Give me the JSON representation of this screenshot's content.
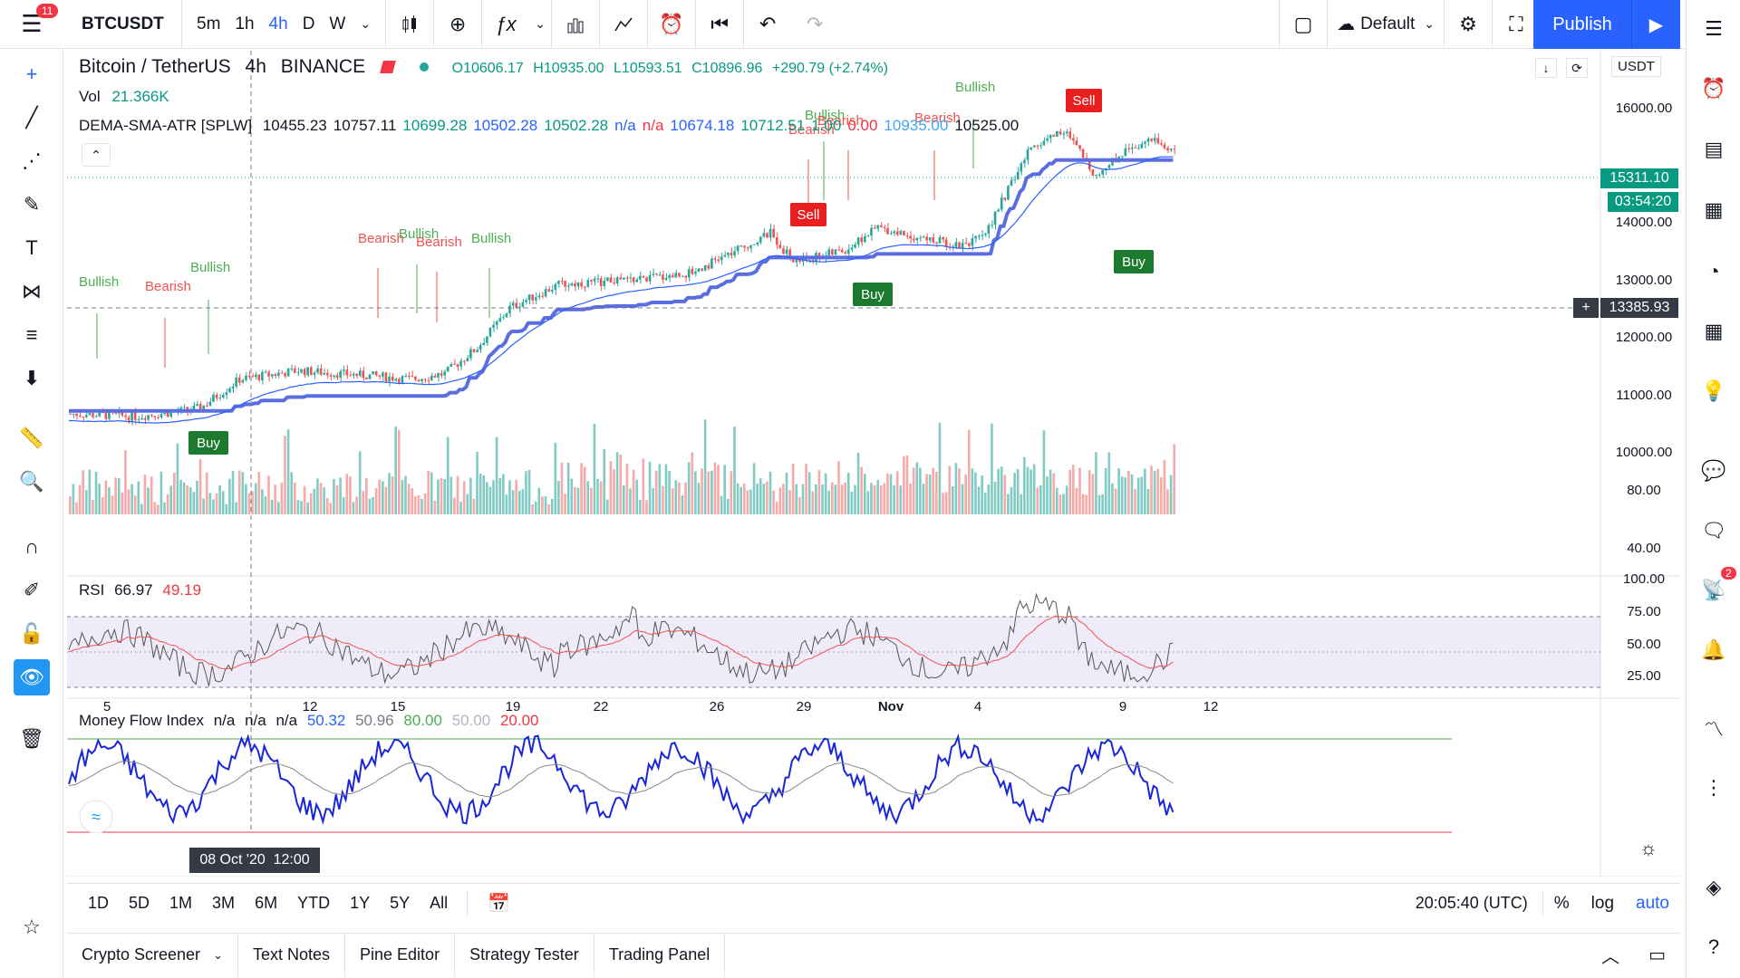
{
  "topbar": {
    "notifications": "11",
    "symbol": "BTCUSDT",
    "intervals": [
      "5m",
      "1h",
      "4h",
      "D",
      "W"
    ],
    "active_interval": "4h",
    "layout_name": "Default",
    "publish_label": "Publish"
  },
  "legend": {
    "main": "Bitcoin / TetherUS",
    "interval": "4h",
    "exchange": "BINANCE",
    "open": "O10606.17",
    "high": "H10935.00",
    "low": "L10593.51",
    "close": "C10896.96",
    "change": "+290.79 (+2.74%)",
    "vol_label": "Vol",
    "vol_value": "21.366K",
    "indicator_name": "DEMA-SMA-ATR [SPLW]",
    "indicator_values": [
      {
        "v": "10455.23",
        "c": "#131722"
      },
      {
        "v": "10757.11",
        "c": "#131722"
      },
      {
        "v": "10699.28",
        "c": "#089981"
      },
      {
        "v": "10502.28",
        "c": "#2962ff"
      },
      {
        "v": "10502.28",
        "c": "#089981"
      },
      {
        "v": "n/a",
        "c": "#2962ff"
      },
      {
        "v": "n/a",
        "c": "#f23645"
      },
      {
        "v": "10674.18",
        "c": "#2962ff"
      },
      {
        "v": "10712.51",
        "c": "#089981"
      },
      {
        "v": "1.00",
        "c": "#089981"
      },
      {
        "v": "0.00",
        "c": "#f23645"
      },
      {
        "v": "10935.00",
        "c": "#42a5f5"
      },
      {
        "v": "10525.00",
        "c": "#131722"
      }
    ]
  },
  "rsi": {
    "label": "RSI",
    "v1": "66.97",
    "v2": "49.19"
  },
  "mfi": {
    "label": "Money Flow Index",
    "v1": "n/a",
    "v2": "n/a",
    "v3": "n/a",
    "v4": "50.32",
    "v5": "50.96",
    "v6": "80.00",
    "v7": "50.00",
    "v8": "20.00"
  },
  "price_axis": {
    "currency": "USDT",
    "ticks": [
      "16000.00",
      "15311.10",
      "14000.00",
      "13385.93",
      "13000.00",
      "12000.00",
      "11000.00",
      "10000.00"
    ],
    "current_price": "15311.10",
    "countdown": "03:54:20",
    "crosshair_price": "13385.93",
    "rsi_ticks": [
      "80.00",
      "40.00"
    ],
    "mfi_ticks": [
      "100.00",
      "75.00",
      "50.00",
      "25.00"
    ]
  },
  "time_axis": {
    "ticks": [
      "5",
      "12",
      "15",
      "19",
      "22",
      "26",
      "29",
      "Nov",
      "4",
      "9",
      "12"
    ],
    "crosshair_label": "08 Oct '20  12:00"
  },
  "signals": {
    "bullish": "Bullish",
    "bearish": "Bearish",
    "buy": "Buy",
    "sell": "Sell"
  },
  "bottom": {
    "ranges": [
      "1D",
      "5D",
      "1M",
      "3M",
      "6M",
      "YTD",
      "1Y",
      "5Y",
      "All"
    ],
    "clock": "20:05:40 (UTC)",
    "percent": "%",
    "log": "log",
    "auto": "auto"
  },
  "panels": [
    "Crypto Screener",
    "Text Notes",
    "Pine Editor",
    "Strategy Tester",
    "Trading Panel"
  ],
  "colors": {
    "up": "#26a69a",
    "down": "#ef5350",
    "accent": "#2962ff",
    "bull_text": "#4caf50",
    "bear_text": "#ef5350"
  }
}
